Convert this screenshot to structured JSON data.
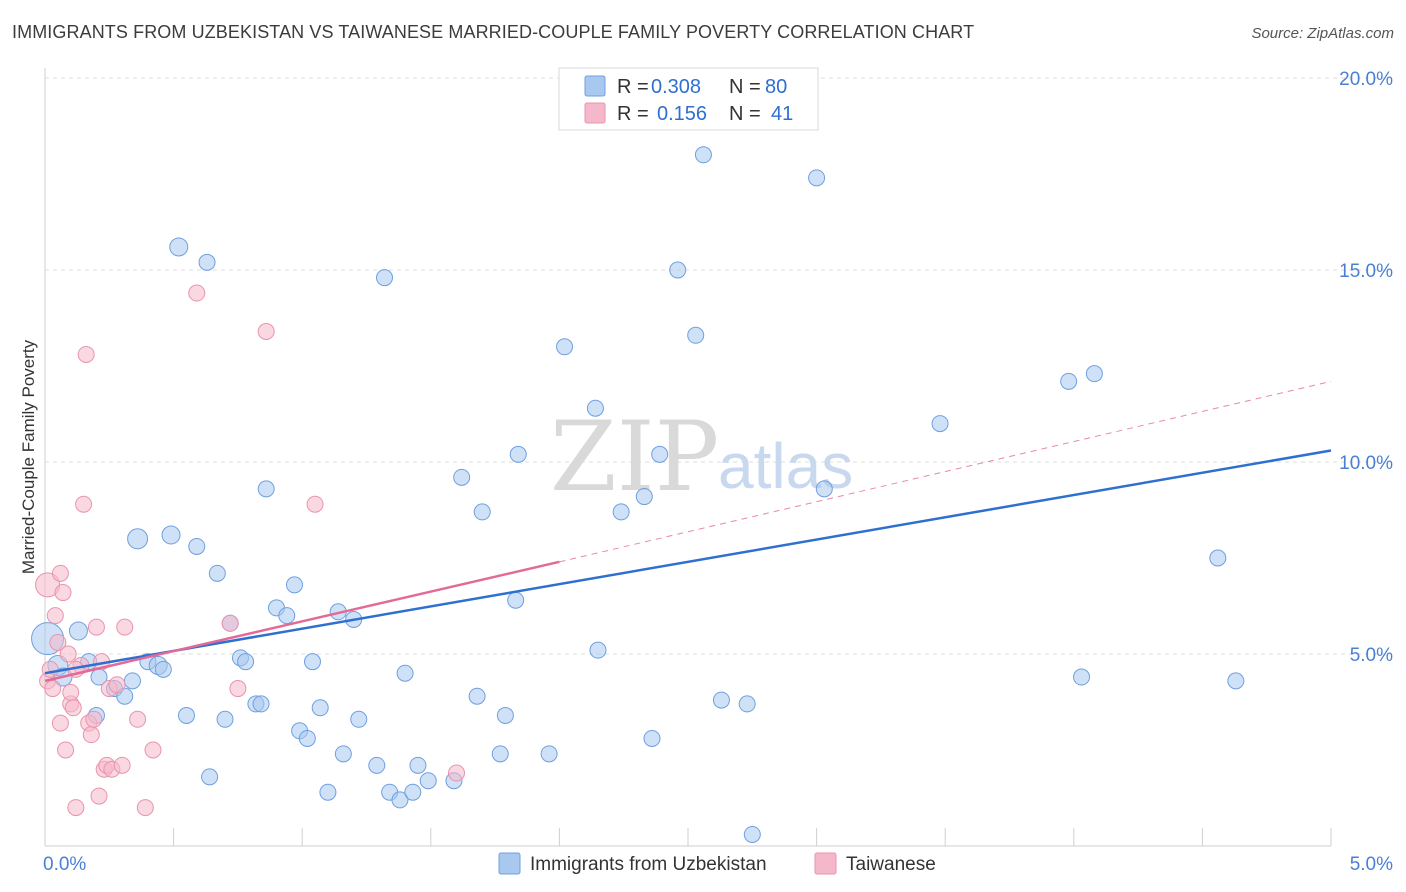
{
  "title": "IMMIGRANTS FROM UZBEKISTAN VS TAIWANESE MARRIED-COUPLE FAMILY POVERTY CORRELATION CHART",
  "source": "Source: ZipAtlas.com",
  "watermark": {
    "zip": "ZIP",
    "atlas": "atlas"
  },
  "legend": {
    "rows": [
      {
        "r_label": "R =",
        "r_value": "0.308",
        "n_label": "N =",
        "n_value": "80",
        "color": "#a8c8f0"
      },
      {
        "r_label": "R =",
        "r_value": "0.156",
        "n_label": "N =",
        "n_value": "41",
        "color": "#f5b8cb"
      }
    ]
  },
  "bottom_legend": [
    {
      "label": "Immigrants from Uzbekistan",
      "color": "#a8c8f0"
    },
    {
      "label": "Taiwanese",
      "color": "#f5b8cb"
    }
  ],
  "chart_data": {
    "type": "scatter",
    "title": "IMMIGRANTS FROM UZBEKISTAN VS TAIWANESE MARRIED-COUPLE FAMILY POVERTY CORRELATION CHART",
    "xlabel": "",
    "ylabel": "Married-Couple Family Poverty",
    "xlim": [
      0,
      5
    ],
    "ylim": [
      0,
      20
    ],
    "x_tick_labels": [
      {
        "value": 0,
        "label": "0.0%"
      },
      {
        "value": 5,
        "label": "5.0%"
      }
    ],
    "y_tick_labels": [
      {
        "value": 5,
        "label": "5.0%"
      },
      {
        "value": 10,
        "label": "10.0%"
      },
      {
        "value": 15,
        "label": "15.0%"
      },
      {
        "value": 20,
        "label": "20.0%"
      }
    ],
    "series": [
      {
        "name": "Immigrants from Uzbekistan",
        "color": "#a8c8f0",
        "stroke": "#6f9fe0",
        "trend": {
          "x0": 0,
          "y0": 4.5,
          "x1": 5,
          "y1": 10.3,
          "color": "#2f6fd0"
        },
        "points": [
          [
            0.01,
            5.4,
            16
          ],
          [
            0.05,
            4.7,
            10
          ],
          [
            0.07,
            4.4,
            9
          ],
          [
            0.13,
            5.6,
            9
          ],
          [
            0.17,
            4.8,
            8
          ],
          [
            0.2,
            3.4,
            8
          ],
          [
            0.21,
            4.4,
            8
          ],
          [
            0.27,
            4.1,
            8
          ],
          [
            0.31,
            3.9,
            8
          ],
          [
            0.34,
            4.3,
            8
          ],
          [
            0.36,
            8.0,
            10
          ],
          [
            0.4,
            4.8,
            8
          ],
          [
            0.44,
            4.7,
            9
          ],
          [
            0.46,
            4.6,
            8
          ],
          [
            0.49,
            8.1,
            9
          ],
          [
            0.52,
            15.6,
            9
          ],
          [
            0.55,
            3.4,
            8
          ],
          [
            0.59,
            7.8,
            8
          ],
          [
            0.63,
            15.2,
            8
          ],
          [
            0.64,
            1.8,
            8
          ],
          [
            0.67,
            7.1,
            8
          ],
          [
            0.7,
            3.3,
            8
          ],
          [
            0.72,
            5.8,
            8
          ],
          [
            0.76,
            4.9,
            8
          ],
          [
            0.78,
            4.8,
            8
          ],
          [
            0.82,
            3.7,
            8
          ],
          [
            0.84,
            3.7,
            8
          ],
          [
            0.86,
            9.3,
            8
          ],
          [
            0.9,
            6.2,
            8
          ],
          [
            0.94,
            6.0,
            8
          ],
          [
            0.97,
            6.8,
            8
          ],
          [
            0.99,
            3.0,
            8
          ],
          [
            1.02,
            2.8,
            8
          ],
          [
            1.04,
            4.8,
            8
          ],
          [
            1.07,
            3.6,
            8
          ],
          [
            1.1,
            1.4,
            8
          ],
          [
            1.14,
            6.1,
            8
          ],
          [
            1.16,
            2.4,
            8
          ],
          [
            1.2,
            5.9,
            8
          ],
          [
            1.22,
            3.3,
            8
          ],
          [
            1.29,
            2.1,
            8
          ],
          [
            1.32,
            14.8,
            8
          ],
          [
            1.34,
            1.4,
            8
          ],
          [
            1.38,
            1.2,
            8
          ],
          [
            1.4,
            4.5,
            8
          ],
          [
            1.43,
            1.4,
            8
          ],
          [
            1.45,
            2.1,
            8
          ],
          [
            1.49,
            1.7,
            8
          ],
          [
            1.59,
            1.7,
            8
          ],
          [
            1.62,
            9.6,
            8
          ],
          [
            1.68,
            3.9,
            8
          ],
          [
            1.7,
            8.7,
            8
          ],
          [
            1.77,
            2.4,
            8
          ],
          [
            1.79,
            3.4,
            8
          ],
          [
            1.84,
            10.2,
            8
          ],
          [
            1.83,
            6.4,
            8
          ],
          [
            1.96,
            2.4,
            8
          ],
          [
            2.02,
            13.0,
            8
          ],
          [
            2.14,
            11.4,
            8
          ],
          [
            2.15,
            5.1,
            8
          ],
          [
            2.24,
            8.7,
            8
          ],
          [
            2.33,
            9.1,
            8
          ],
          [
            2.36,
            2.8,
            8
          ],
          [
            2.39,
            10.2,
            8
          ],
          [
            2.46,
            15.0,
            8
          ],
          [
            2.53,
            13.3,
            8
          ],
          [
            2.56,
            18.0,
            8
          ],
          [
            2.63,
            3.8,
            8
          ],
          [
            2.73,
            3.7,
            8
          ],
          [
            2.75,
            0.3,
            8
          ],
          [
            3.0,
            17.4,
            8
          ],
          [
            3.03,
            9.3,
            8
          ],
          [
            3.48,
            11.0,
            8
          ],
          [
            3.98,
            12.1,
            8
          ],
          [
            4.03,
            4.4,
            8
          ],
          [
            4.08,
            12.3,
            8
          ],
          [
            4.56,
            7.5,
            8
          ],
          [
            4.63,
            4.3,
            8
          ]
        ]
      },
      {
        "name": "Taiwanese",
        "color": "#f5b8cb",
        "stroke": "#e894ad",
        "trend": {
          "x0": 0,
          "y0": 4.3,
          "x1": 2,
          "y1": 7.4,
          "color": "#e36a96",
          "dash_x1": 5,
          "dash_y1": 12.1
        },
        "points": [
          [
            0.01,
            6.8,
            12
          ],
          [
            0.01,
            4.3,
            8
          ],
          [
            0.03,
            4.1,
            8
          ],
          [
            0.04,
            6.0,
            8
          ],
          [
            0.05,
            5.3,
            8
          ],
          [
            0.06,
            7.1,
            8
          ],
          [
            0.06,
            3.2,
            8
          ],
          [
            0.07,
            6.6,
            8
          ],
          [
            0.08,
            2.5,
            8
          ],
          [
            0.09,
            5.0,
            8
          ],
          [
            0.1,
            3.7,
            8
          ],
          [
            0.1,
            4.0,
            8
          ],
          [
            0.11,
            3.6,
            8
          ],
          [
            0.12,
            1.0,
            8
          ],
          [
            0.14,
            4.7,
            8
          ],
          [
            0.15,
            8.9,
            8
          ],
          [
            0.16,
            12.8,
            8
          ],
          [
            0.17,
            3.2,
            8
          ],
          [
            0.18,
            2.9,
            8
          ],
          [
            0.19,
            3.3,
            8
          ],
          [
            0.2,
            5.7,
            8
          ],
          [
            0.21,
            1.3,
            8
          ],
          [
            0.22,
            4.8,
            8
          ],
          [
            0.23,
            2.0,
            8
          ],
          [
            0.24,
            2.1,
            8
          ],
          [
            0.26,
            2.0,
            8
          ],
          [
            0.25,
            4.1,
            8
          ],
          [
            0.3,
            2.1,
            8
          ],
          [
            0.31,
            5.7,
            8
          ],
          [
            0.36,
            3.3,
            8
          ],
          [
            0.39,
            1.0,
            8
          ],
          [
            0.42,
            2.5,
            8
          ],
          [
            0.59,
            14.4,
            8
          ],
          [
            0.72,
            5.8,
            8
          ],
          [
            0.75,
            4.1,
            8
          ],
          [
            0.86,
            13.4,
            8
          ],
          [
            1.05,
            8.9,
            8
          ],
          [
            1.6,
            1.9,
            8
          ],
          [
            0.02,
            4.6,
            8
          ],
          [
            0.12,
            4.6,
            8
          ],
          [
            0.28,
            4.2,
            8
          ]
        ]
      }
    ]
  }
}
